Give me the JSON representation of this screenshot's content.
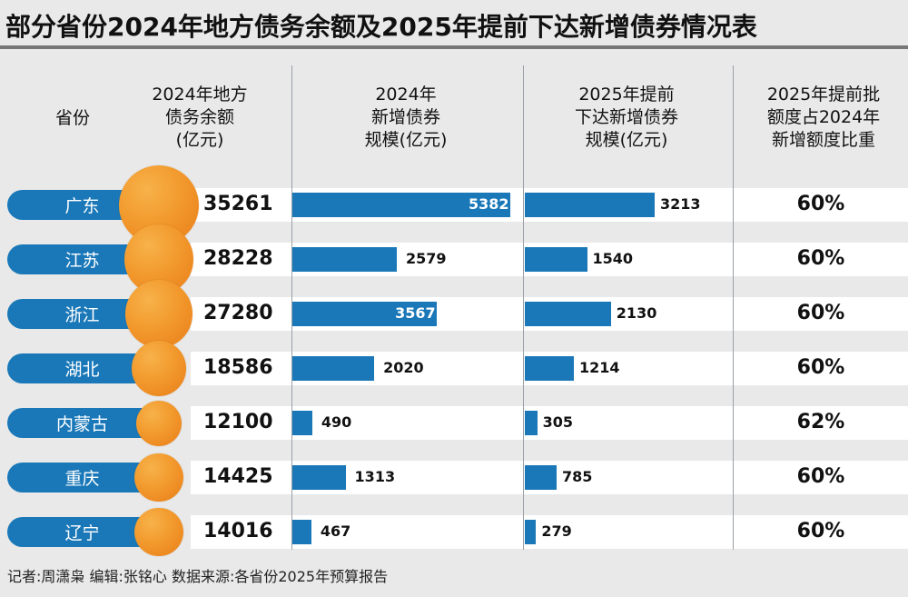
{
  "title": "部分省份2024年地方债务余额及2025年提前下达新增债券情况表",
  "headers": {
    "province": "省份",
    "debt_balance": "2024年地方债务余额(亿元)",
    "new_bonds_2024": "2024年新增债券规模(亿元)",
    "advance_2025": "2025年提前下达新增债券规模(亿元)",
    "ratio": "2025年提前批额度占2024年新增额度比重"
  },
  "header_lines": {
    "debt_balance": [
      "2024年地方",
      "债务余额",
      "(亿元)"
    ],
    "new_bonds_2024": [
      "2024年",
      "新增债券",
      "规模(亿元)"
    ],
    "advance_2025": [
      "2025年提前",
      "下达新增债券",
      "规模(亿元)"
    ],
    "ratio": [
      "2025年提前批",
      "额度占2024年",
      "新增额度比重"
    ]
  },
  "footer": "记者:周潇枭   编辑:张铭心   数据来源:各省份2025年预算报告",
  "colors": {
    "bar": "#1a78b8",
    "pill": "#1a78b8",
    "ball": "#f29a2d",
    "background": "#e9e9e9"
  },
  "chart_data": {
    "type": "table",
    "title": "部分省份2024年地方债务余额及2025年提前下达新增债券情况表",
    "columns": [
      "省份",
      "2024年地方债务余额(亿元)",
      "2024年新增债券规模(亿元)",
      "2025年提前下达新增债券规模(亿元)",
      "2025年提前批额度占2024年新增额度比重"
    ],
    "rows": [
      {
        "province": "广东",
        "debt": "35261",
        "new_2024": 5382,
        "adv_2025": 3213,
        "ratio": "60%"
      },
      {
        "province": "江苏",
        "debt": "28228",
        "new_2024": 2579,
        "adv_2025": 1540,
        "ratio": "60%"
      },
      {
        "province": "浙江",
        "debt": "27280",
        "new_2024": 3567,
        "adv_2025": 2130,
        "ratio": "60%"
      },
      {
        "province": "湖北",
        "debt": "18586",
        "new_2024": 2020,
        "adv_2025": 1214,
        "ratio": "60%"
      },
      {
        "province": "内蒙古",
        "debt": "12100",
        "new_2024": 490,
        "adv_2025": 305,
        "ratio": "62%"
      },
      {
        "province": "重庆",
        "debt": "14425",
        "new_2024": 1313,
        "adv_2025": 785,
        "ratio": "60%"
      },
      {
        "province": "辽宁",
        "debt": "14016",
        "new_2024": 467,
        "adv_2025": 279,
        "ratio": "60%"
      }
    ]
  }
}
